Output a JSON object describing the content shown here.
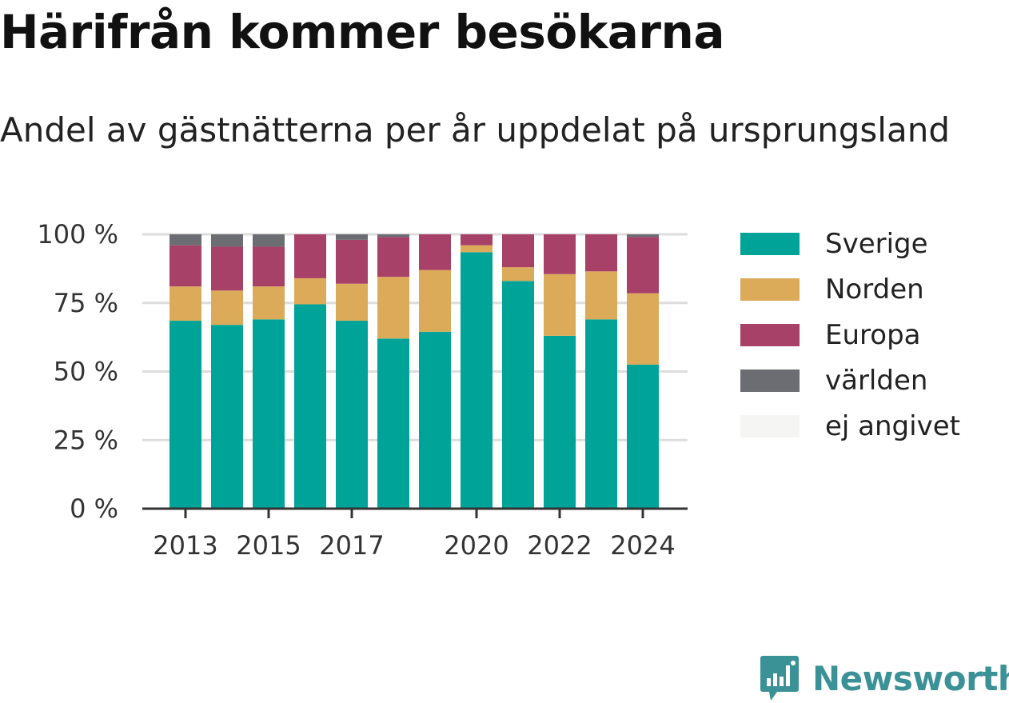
{
  "header": {
    "title": "Härifrån kommer besökarna",
    "subtitle": "Andel av gästnätterna per år uppdelat på ursprungsland"
  },
  "brand": {
    "name": "Newsworthy",
    "icon": "newsworthy-logo-icon",
    "color": "#3a9196"
  },
  "chart_data": {
    "type": "bar",
    "stacked": true,
    "categories": [
      "2013",
      "2014",
      "2015",
      "2016",
      "2017",
      "2018",
      "2019",
      "2020",
      "2021",
      "2022",
      "2023",
      "2024"
    ],
    "x_tick_labels": [
      "2013",
      "",
      "2015",
      "",
      "2017",
      "",
      "",
      "2020",
      "",
      "2022",
      "",
      "2024"
    ],
    "y_ticks": [
      0,
      25,
      50,
      75,
      100
    ],
    "y_tick_labels": [
      "0 %",
      "25 %",
      "50 %",
      "75 %",
      "100 %"
    ],
    "ylim": [
      0,
      100
    ],
    "grid": true,
    "legend_position": "right",
    "series": [
      {
        "name": "Sverige",
        "color": "#00a398",
        "values": [
          68.5,
          67,
          69,
          74.5,
          68.5,
          62,
          64.5,
          93.5,
          83,
          63,
          69,
          52.5
        ]
      },
      {
        "name": "Norden",
        "color": "#dcab5a",
        "values": [
          12.5,
          12.5,
          12,
          9.5,
          13.5,
          22.5,
          22.5,
          2.5,
          5,
          22.5,
          17.5,
          26
        ]
      },
      {
        "name": "Europa",
        "color": "#a84168",
        "values": [
          15,
          16,
          14.5,
          16,
          16,
          14.5,
          13,
          4,
          12,
          14.5,
          13.5,
          20.5
        ]
      },
      {
        "name": "världen",
        "color": "#6c6c73",
        "values": [
          4,
          4.5,
          4.5,
          0,
          2,
          1,
          0,
          0,
          0,
          0,
          0,
          1
        ]
      },
      {
        "name": "ej angivet",
        "color": "#f5f5f3",
        "values": [
          0,
          0,
          0,
          0,
          0,
          0,
          0,
          0,
          0,
          0,
          0,
          0
        ]
      }
    ]
  }
}
